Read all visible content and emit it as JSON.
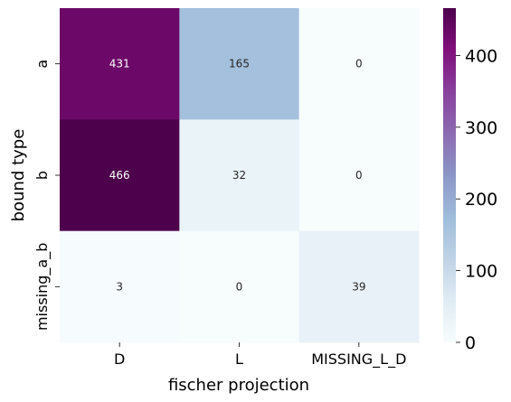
{
  "chart_data": {
    "type": "heatmap",
    "x_categories": [
      "D",
      "L",
      "MISSING_L_D"
    ],
    "y_categories": [
      "a",
      "b",
      "missing_a_b"
    ],
    "values": [
      [
        431,
        165,
        0
      ],
      [
        466,
        32,
        0
      ],
      [
        3,
        0,
        39
      ]
    ],
    "xlabel": "fischer projection",
    "ylabel": "bound type",
    "colorbar": {
      "range": [
        0,
        466
      ],
      "ticks": [
        "0",
        "100",
        "200",
        "300",
        "400"
      ],
      "colormap": "BuPu"
    }
  }
}
